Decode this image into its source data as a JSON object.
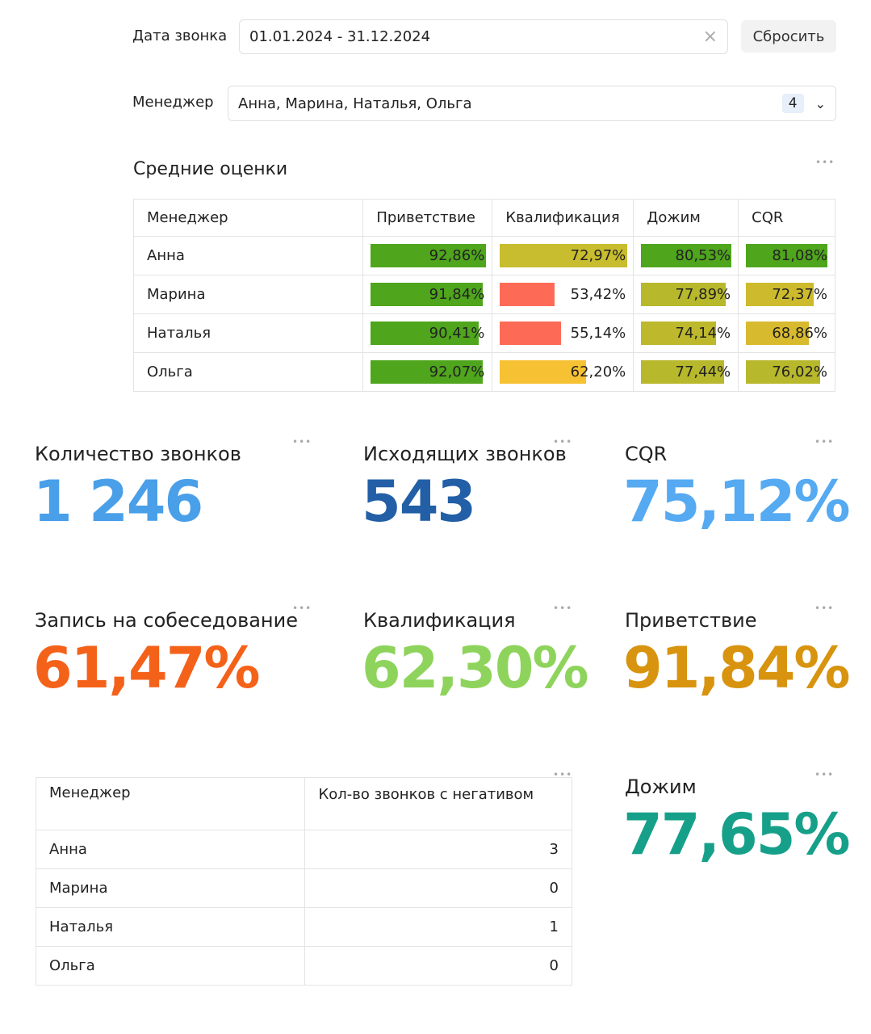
{
  "filters": {
    "date_label": "Дата звонка",
    "date_value": "01.01.2024 - 31.12.2024",
    "reset": "Сбросить",
    "manager_label": "Менеджер",
    "manager_value": "Анна, Марина, Наталья, Ольга",
    "manager_count": "4"
  },
  "scores": {
    "title": "Средние оценки",
    "menu": "•••",
    "headers": [
      "Менеджер",
      "Приветствие",
      "Квалификация",
      "Дожим",
      "CQR"
    ],
    "rows": [
      {
        "name": "Анна",
        "cells": [
          {
            "v": "92,86%",
            "fill": 1.0,
            "color": "#4fa51c"
          },
          {
            "v": "72,97%",
            "fill": 1.0,
            "color": "#c8bd2e"
          },
          {
            "v": "80,53%",
            "fill": 1.0,
            "color": "#4fa51c"
          },
          {
            "v": "81,08%",
            "fill": 1.0,
            "color": "#4fa51c"
          }
        ]
      },
      {
        "name": "Марина",
        "cells": [
          {
            "v": "91,84%",
            "fill": 0.97,
            "color": "#4fa51c"
          },
          {
            "v": "53,42%",
            "fill": 0.43,
            "color": "#fd6b57"
          },
          {
            "v": "77,89%",
            "fill": 0.94,
            "color": "#b7b82b"
          },
          {
            "v": "72,37%",
            "fill": 0.83,
            "color": "#cdbb2d"
          }
        ]
      },
      {
        "name": "Наталья",
        "cells": [
          {
            "v": "90,41%",
            "fill": 0.94,
            "color": "#4fa51c"
          },
          {
            "v": "55,14%",
            "fill": 0.48,
            "color": "#fd6b57"
          },
          {
            "v": "74,14%",
            "fill": 0.83,
            "color": "#bdb82c"
          },
          {
            "v": "68,86%",
            "fill": 0.77,
            "color": "#d8ba2f"
          }
        ]
      },
      {
        "name": "Ольга",
        "cells": [
          {
            "v": "92,07%",
            "fill": 0.97,
            "color": "#4fa51c"
          },
          {
            "v": "62,20%",
            "fill": 0.68,
            "color": "#f6c132"
          },
          {
            "v": "77,44%",
            "fill": 0.92,
            "color": "#b7b82b"
          },
          {
            "v": "76,02%",
            "fill": 0.91,
            "color": "#b7b82b"
          }
        ]
      }
    ]
  },
  "kpis": [
    {
      "title": "Количество звонков",
      "value": "1 246",
      "color": "#4a9fe9"
    },
    {
      "title": "Исходящих звонков",
      "value": "543",
      "color": "#225fa6"
    },
    {
      "title": "CQR",
      "value": "75,12%",
      "color": "#55aaf2"
    },
    {
      "title": "Запись на собеседование",
      "value": "61,47%",
      "color": "#f4621a"
    },
    {
      "title": "Квалификация",
      "value": "62,30%",
      "color": "#8ed45c"
    },
    {
      "title": "Приветствие",
      "value": "91,84%",
      "color": "#d8940f"
    },
    {
      "title": "Дожим",
      "value": "77,65%",
      "color": "#16a08a"
    }
  ],
  "negative": {
    "headers": [
      "Менеджер",
      "Кол-во звонков с негативом"
    ],
    "rows": [
      [
        "Анна",
        "3"
      ],
      [
        "Марина",
        "0"
      ],
      [
        "Наталья",
        "1"
      ],
      [
        "Ольга",
        "0"
      ]
    ]
  }
}
